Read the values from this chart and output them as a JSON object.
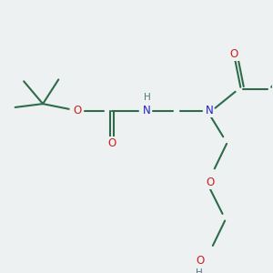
{
  "bg_color": "#edf1f2",
  "bond_color": "#2d6b4a",
  "N_color": "#2020cc",
  "O_color": "#cc2020",
  "H_color": "#4a7a7a",
  "line_width": 1.5,
  "font_size": 8.5,
  "fig_w": 3.0,
  "fig_h": 3.0,
  "dpi": 100,
  "xlim": [
    0,
    10
  ],
  "ylim": [
    0,
    10
  ]
}
